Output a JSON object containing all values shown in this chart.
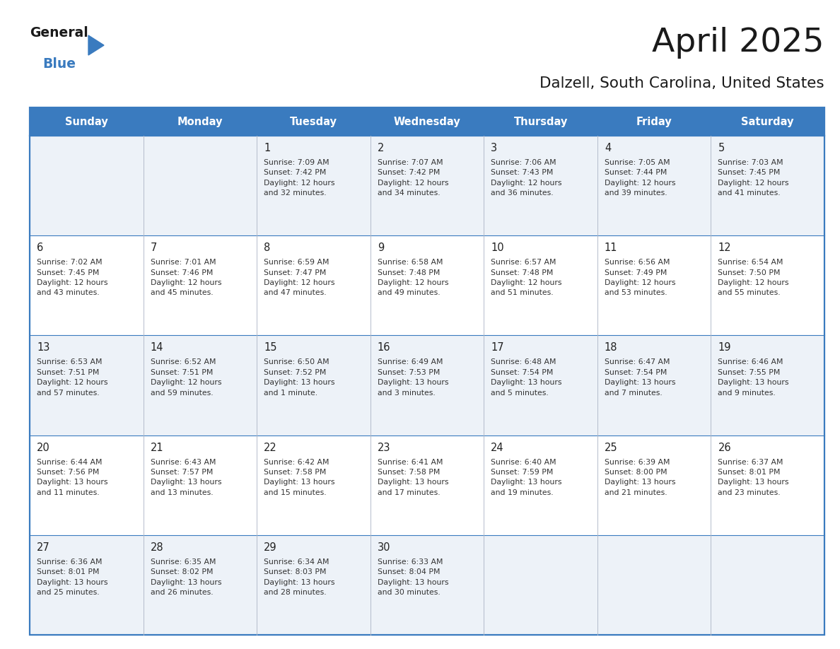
{
  "title": "April 2025",
  "subtitle": "Dalzell, South Carolina, United States",
  "header_bg": "#3a7bbf",
  "header_text": "#ffffff",
  "row_bg_light": "#edf2f8",
  "row_bg_white": "#ffffff",
  "border_color": "#3a7bbf",
  "inner_line_color": "#3a7bbf",
  "day_names": [
    "Sunday",
    "Monday",
    "Tuesday",
    "Wednesday",
    "Thursday",
    "Friday",
    "Saturday"
  ],
  "title_color": "#1a1a1a",
  "subtitle_color": "#1a1a1a",
  "cell_text_color": "#333333",
  "date_num_color": "#222222",
  "logo_general_color": "#1a1a1a",
  "logo_blue_color": "#3a7bbf",
  "calendar": [
    [
      {
        "day": null,
        "text": ""
      },
      {
        "day": null,
        "text": ""
      },
      {
        "day": 1,
        "text": "Sunrise: 7:09 AM\nSunset: 7:42 PM\nDaylight: 12 hours\nand 32 minutes."
      },
      {
        "day": 2,
        "text": "Sunrise: 7:07 AM\nSunset: 7:42 PM\nDaylight: 12 hours\nand 34 minutes."
      },
      {
        "day": 3,
        "text": "Sunrise: 7:06 AM\nSunset: 7:43 PM\nDaylight: 12 hours\nand 36 minutes."
      },
      {
        "day": 4,
        "text": "Sunrise: 7:05 AM\nSunset: 7:44 PM\nDaylight: 12 hours\nand 39 minutes."
      },
      {
        "day": 5,
        "text": "Sunrise: 7:03 AM\nSunset: 7:45 PM\nDaylight: 12 hours\nand 41 minutes."
      }
    ],
    [
      {
        "day": 6,
        "text": "Sunrise: 7:02 AM\nSunset: 7:45 PM\nDaylight: 12 hours\nand 43 minutes."
      },
      {
        "day": 7,
        "text": "Sunrise: 7:01 AM\nSunset: 7:46 PM\nDaylight: 12 hours\nand 45 minutes."
      },
      {
        "day": 8,
        "text": "Sunrise: 6:59 AM\nSunset: 7:47 PM\nDaylight: 12 hours\nand 47 minutes."
      },
      {
        "day": 9,
        "text": "Sunrise: 6:58 AM\nSunset: 7:48 PM\nDaylight: 12 hours\nand 49 minutes."
      },
      {
        "day": 10,
        "text": "Sunrise: 6:57 AM\nSunset: 7:48 PM\nDaylight: 12 hours\nand 51 minutes."
      },
      {
        "day": 11,
        "text": "Sunrise: 6:56 AM\nSunset: 7:49 PM\nDaylight: 12 hours\nand 53 minutes."
      },
      {
        "day": 12,
        "text": "Sunrise: 6:54 AM\nSunset: 7:50 PM\nDaylight: 12 hours\nand 55 minutes."
      }
    ],
    [
      {
        "day": 13,
        "text": "Sunrise: 6:53 AM\nSunset: 7:51 PM\nDaylight: 12 hours\nand 57 minutes."
      },
      {
        "day": 14,
        "text": "Sunrise: 6:52 AM\nSunset: 7:51 PM\nDaylight: 12 hours\nand 59 minutes."
      },
      {
        "day": 15,
        "text": "Sunrise: 6:50 AM\nSunset: 7:52 PM\nDaylight: 13 hours\nand 1 minute."
      },
      {
        "day": 16,
        "text": "Sunrise: 6:49 AM\nSunset: 7:53 PM\nDaylight: 13 hours\nand 3 minutes."
      },
      {
        "day": 17,
        "text": "Sunrise: 6:48 AM\nSunset: 7:54 PM\nDaylight: 13 hours\nand 5 minutes."
      },
      {
        "day": 18,
        "text": "Sunrise: 6:47 AM\nSunset: 7:54 PM\nDaylight: 13 hours\nand 7 minutes."
      },
      {
        "day": 19,
        "text": "Sunrise: 6:46 AM\nSunset: 7:55 PM\nDaylight: 13 hours\nand 9 minutes."
      }
    ],
    [
      {
        "day": 20,
        "text": "Sunrise: 6:44 AM\nSunset: 7:56 PM\nDaylight: 13 hours\nand 11 minutes."
      },
      {
        "day": 21,
        "text": "Sunrise: 6:43 AM\nSunset: 7:57 PM\nDaylight: 13 hours\nand 13 minutes."
      },
      {
        "day": 22,
        "text": "Sunrise: 6:42 AM\nSunset: 7:58 PM\nDaylight: 13 hours\nand 15 minutes."
      },
      {
        "day": 23,
        "text": "Sunrise: 6:41 AM\nSunset: 7:58 PM\nDaylight: 13 hours\nand 17 minutes."
      },
      {
        "day": 24,
        "text": "Sunrise: 6:40 AM\nSunset: 7:59 PM\nDaylight: 13 hours\nand 19 minutes."
      },
      {
        "day": 25,
        "text": "Sunrise: 6:39 AM\nSunset: 8:00 PM\nDaylight: 13 hours\nand 21 minutes."
      },
      {
        "day": 26,
        "text": "Sunrise: 6:37 AM\nSunset: 8:01 PM\nDaylight: 13 hours\nand 23 minutes."
      }
    ],
    [
      {
        "day": 27,
        "text": "Sunrise: 6:36 AM\nSunset: 8:01 PM\nDaylight: 13 hours\nand 25 minutes."
      },
      {
        "day": 28,
        "text": "Sunrise: 6:35 AM\nSunset: 8:02 PM\nDaylight: 13 hours\nand 26 minutes."
      },
      {
        "day": 29,
        "text": "Sunrise: 6:34 AM\nSunset: 8:03 PM\nDaylight: 13 hours\nand 28 minutes."
      },
      {
        "day": 30,
        "text": "Sunrise: 6:33 AM\nSunset: 8:04 PM\nDaylight: 13 hours\nand 30 minutes."
      },
      {
        "day": null,
        "text": ""
      },
      {
        "day": null,
        "text": ""
      },
      {
        "day": null,
        "text": ""
      }
    ]
  ]
}
